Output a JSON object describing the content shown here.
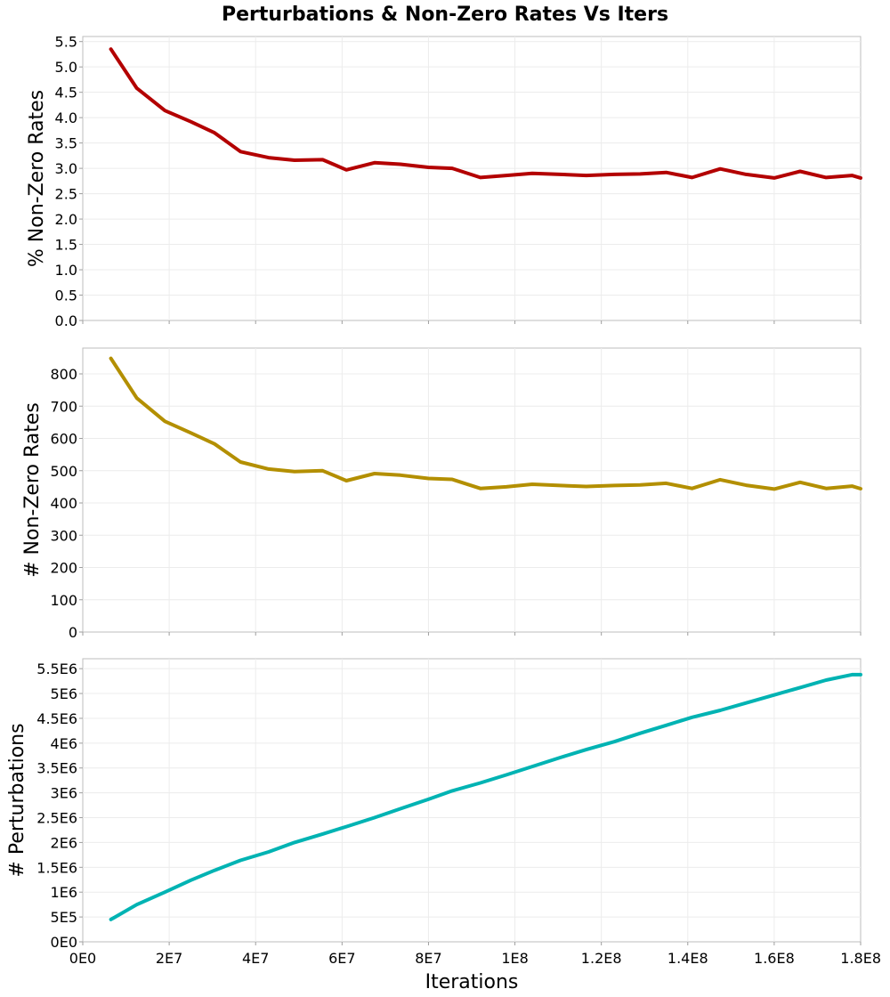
{
  "chart_data": {
    "title": "Perturbations & Non-Zero Rates Vs Iters",
    "xlabel": "Iterations",
    "type": "line",
    "x_ticks": [
      "0E0",
      "2E7",
      "4E7",
      "6E7",
      "8E7",
      "1E8",
      "1.2E8",
      "1.4E8",
      "1.6E8",
      "1.8E8"
    ],
    "xlim": [
      0,
      180000000
    ],
    "x": [
      6500000,
      12500000,
      19000000,
      25000000,
      30500000,
      36500000,
      43000000,
      49000000,
      55500000,
      61000000,
      67500000,
      73500000,
      80000000,
      85500000,
      92000000,
      98000000,
      104000000,
      110500000,
      116500000,
      123000000,
      129000000,
      135000000,
      141000000,
      147500000,
      153500000,
      160000000,
      166000000,
      172000000,
      178000000,
      180000000
    ],
    "grid": true,
    "panels": [
      {
        "ylabel": "% Non-Zero Rates",
        "color": "#b30000",
        "ylim": [
          0,
          5.6
        ],
        "y_ticks": [
          0.0,
          0.5,
          1.0,
          1.5,
          2.0,
          2.5,
          3.0,
          3.5,
          4.0,
          4.5,
          5.0,
          5.5
        ],
        "y_tick_labels": [
          "0.0",
          "0.5",
          "1.0",
          "1.5",
          "2.0",
          "2.5",
          "3.0",
          "3.5",
          "4.0",
          "4.5",
          "5.0",
          "5.5"
        ],
        "values": [
          5.35,
          4.58,
          4.14,
          3.92,
          3.7,
          3.33,
          3.21,
          3.16,
          3.17,
          2.97,
          3.11,
          3.08,
          3.02,
          3.0,
          2.82,
          2.86,
          2.9,
          2.88,
          2.86,
          2.88,
          2.89,
          2.92,
          2.82,
          2.99,
          2.88,
          2.81,
          2.94,
          2.82,
          2.86,
          2.81
        ]
      },
      {
        "ylabel": "# Non-Zero Rates",
        "color": "#b38f00",
        "ylim": [
          0,
          880
        ],
        "y_ticks": [
          0,
          100,
          200,
          300,
          400,
          500,
          600,
          700,
          800
        ],
        "y_tick_labels": [
          "0",
          "100",
          "200",
          "300",
          "400",
          "500",
          "600",
          "700",
          "800"
        ],
        "values": [
          848,
          725,
          653,
          617,
          583,
          527,
          505,
          497,
          500,
          469,
          491,
          486,
          476,
          473,
          445,
          450,
          458,
          454,
          451,
          454,
          456,
          461,
          445,
          472,
          455,
          443,
          464,
          445,
          452,
          444
        ]
      },
      {
        "ylabel": "# Perturbations",
        "color": "#00b3b3",
        "ylim": [
          0,
          5700000
        ],
        "y_ticks": [
          0,
          500000,
          1000000,
          1500000,
          2000000,
          2500000,
          3000000,
          3500000,
          4000000,
          4500000,
          5000000,
          5500000
        ],
        "y_tick_labels": [
          "0E0",
          "5E5",
          "1E6",
          "1.5E6",
          "2E6",
          "2.5E6",
          "3E6",
          "3.5E6",
          "4E6",
          "4.5E6",
          "5E6",
          "5.5E6"
        ],
        "values": [
          450000,
          750000,
          1000000,
          1240000,
          1440000,
          1640000,
          1810000,
          2000000,
          2170000,
          2320000,
          2500000,
          2680000,
          2870000,
          3040000,
          3200000,
          3360000,
          3530000,
          3710000,
          3870000,
          4030000,
          4200000,
          4360000,
          4520000,
          4660000,
          4810000,
          4970000,
          5120000,
          5270000,
          5380000,
          5380000
        ]
      }
    ]
  }
}
